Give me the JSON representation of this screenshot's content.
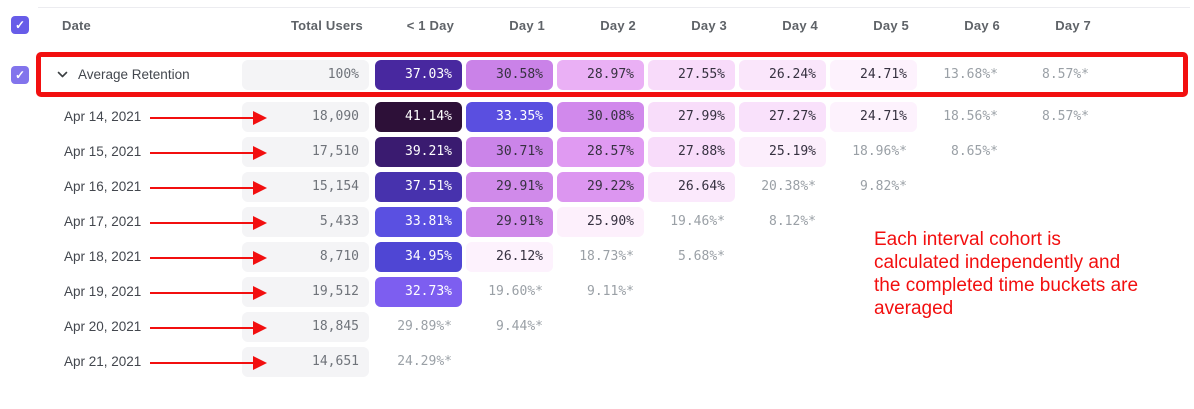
{
  "table": {
    "columns": [
      {
        "key": "date",
        "label": "Date"
      },
      {
        "key": "total",
        "label": "Total Users"
      },
      {
        "key": "lt1day",
        "label": "< 1 Day"
      },
      {
        "key": "day1",
        "label": "Day 1"
      },
      {
        "key": "day2",
        "label": "Day 2"
      },
      {
        "key": "day3",
        "label": "Day 3"
      },
      {
        "key": "day4",
        "label": "Day 4"
      },
      {
        "key": "day5",
        "label": "Day 5"
      },
      {
        "key": "day6",
        "label": "Day 6"
      },
      {
        "key": "day7",
        "label": "Day 7"
      }
    ],
    "rows": [
      {
        "label": "Average Retention",
        "average": true,
        "total": "100%",
        "cells": [
          {
            "v": "37.03%",
            "bg": "#48289f",
            "fg": "#ffffff"
          },
          {
            "v": "30.58%",
            "bg": "#ca82e8",
            "fg": "#363140"
          },
          {
            "v": "28.97%",
            "bg": "#eab0f5",
            "fg": "#363140"
          },
          {
            "v": "27.55%",
            "bg": "#f8dbfa",
            "fg": "#363140"
          },
          {
            "v": "26.24%",
            "bg": "#fae6fb",
            "fg": "#363140"
          },
          {
            "v": "24.71%",
            "bg": "#fdf2fd",
            "fg": "#363140"
          },
          {
            "v": "13.68%*",
            "bg": null,
            "fg": "#9aa0a6"
          },
          {
            "v": "8.57%*",
            "bg": null,
            "fg": "#9aa0a6"
          }
        ]
      },
      {
        "label": "Apr 14, 2021",
        "average": false,
        "total": "18,090",
        "cells": [
          {
            "v": "41.14%",
            "bg": "#2d1038",
            "fg": "#ffffff"
          },
          {
            "v": "33.35%",
            "bg": "#5a4fe0",
            "fg": "#ffffff"
          },
          {
            "v": "30.08%",
            "bg": "#d189ec",
            "fg": "#363140"
          },
          {
            "v": "27.99%",
            "bg": "#f8ddfa",
            "fg": "#363140"
          },
          {
            "v": "27.27%",
            "bg": "#f9e1fb",
            "fg": "#363140"
          },
          {
            "v": "24.71%",
            "bg": "#fdf2fd",
            "fg": "#363140"
          },
          {
            "v": "18.56%*",
            "bg": null,
            "fg": "#9aa0a6"
          },
          {
            "v": "8.57%*",
            "bg": null,
            "fg": "#9aa0a6"
          }
        ]
      },
      {
        "label": "Apr 15, 2021",
        "average": false,
        "total": "17,510",
        "cells": [
          {
            "v": "39.21%",
            "bg": "#3a1b70",
            "fg": "#ffffff"
          },
          {
            "v": "30.71%",
            "bg": "#cb84e9",
            "fg": "#363140"
          },
          {
            "v": "28.57%",
            "bg": "#e09af2",
            "fg": "#363140"
          },
          {
            "v": "27.88%",
            "bg": "#f8dcfa",
            "fg": "#363140"
          },
          {
            "v": "25.19%",
            "bg": "#fceefc",
            "fg": "#363140"
          },
          {
            "v": "18.96%*",
            "bg": null,
            "fg": "#9aa0a6"
          },
          {
            "v": "8.65%*",
            "bg": null,
            "fg": "#9aa0a6"
          },
          null
        ]
      },
      {
        "label": "Apr 16, 2021",
        "average": false,
        "total": "15,154",
        "cells": [
          {
            "v": "37.51%",
            "bg": "#4732ad",
            "fg": "#ffffff"
          },
          {
            "v": "29.91%",
            "bg": "#d08aea",
            "fg": "#363140"
          },
          {
            "v": "29.22%",
            "bg": "#dc96f0",
            "fg": "#363140"
          },
          {
            "v": "26.64%",
            "bg": "#fbe9fc",
            "fg": "#363140"
          },
          {
            "v": "20.38%*",
            "bg": null,
            "fg": "#9aa0a6"
          },
          {
            "v": "9.82%*",
            "bg": null,
            "fg": "#9aa0a6"
          },
          null,
          null
        ]
      },
      {
        "label": "Apr 17, 2021",
        "average": false,
        "total": "5,433",
        "cells": [
          {
            "v": "33.81%",
            "bg": "#5a50e1",
            "fg": "#ffffff"
          },
          {
            "v": "29.91%",
            "bg": "#d08aea",
            "fg": "#363140"
          },
          {
            "v": "25.90%",
            "bg": "#fdf0fc",
            "fg": "#363140"
          },
          {
            "v": "19.46%*",
            "bg": null,
            "fg": "#9aa0a6"
          },
          {
            "v": "8.12%*",
            "bg": null,
            "fg": "#9aa0a6"
          },
          null,
          null,
          null
        ]
      },
      {
        "label": "Apr 18, 2021",
        "average": false,
        "total": "8,710",
        "cells": [
          {
            "v": "34.95%",
            "bg": "#4f46d4",
            "fg": "#ffffff"
          },
          {
            "v": "26.12%",
            "bg": "#fdf2fd",
            "fg": "#363140"
          },
          {
            "v": "18.73%*",
            "bg": null,
            "fg": "#9aa0a6"
          },
          {
            "v": "5.68%*",
            "bg": null,
            "fg": "#9aa0a6"
          },
          null,
          null,
          null,
          null
        ]
      },
      {
        "label": "Apr 19, 2021",
        "average": false,
        "total": "19,512",
        "cells": [
          {
            "v": "32.73%",
            "bg": "#7d5ef0",
            "fg": "#ffffff"
          },
          {
            "v": "19.60%*",
            "bg": null,
            "fg": "#9aa0a6"
          },
          {
            "v": "9.11%*",
            "bg": null,
            "fg": "#9aa0a6"
          },
          null,
          null,
          null,
          null,
          null
        ]
      },
      {
        "label": "Apr 20, 2021",
        "average": false,
        "total": "18,845",
        "cells": [
          {
            "v": "29.89%*",
            "bg": null,
            "fg": "#9aa0a6"
          },
          {
            "v": "9.44%*",
            "bg": null,
            "fg": "#9aa0a6"
          },
          null,
          null,
          null,
          null,
          null,
          null
        ]
      },
      {
        "label": "Apr 21, 2021",
        "average": false,
        "total": "14,651",
        "cells": [
          {
            "v": "24.29%*",
            "bg": null,
            "fg": "#9aa0a6"
          },
          null,
          null,
          null,
          null,
          null,
          null,
          null
        ]
      }
    ]
  },
  "annotations": {
    "note_text": "Each interval cohort is\ncalculated independently and\nthe completed time buckets are\naveraged",
    "annotation_red": "#f20f0f"
  },
  "icons": {
    "header_checkbox": "checkbox-checked",
    "row_checkbox": "checkbox-checked",
    "check_glyph": "✓",
    "expand": "chevron-down"
  },
  "colors": {
    "header_checkbox_bg": "#675ce8",
    "row_checkbox_bg": "#8274ec",
    "total_cell_bg": "#f4f4f6",
    "header_text": "#5f6368",
    "date_text": "#43474e",
    "muted_value_text": "#9aa0a6"
  }
}
